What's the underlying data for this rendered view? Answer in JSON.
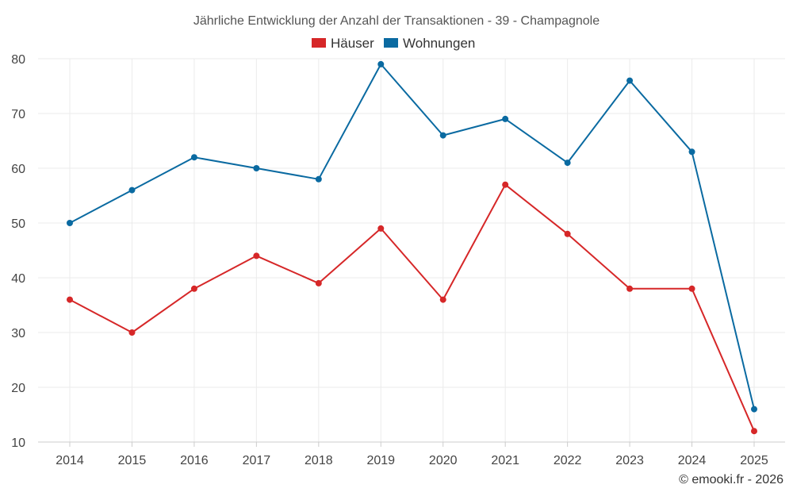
{
  "chart_data": {
    "type": "line",
    "title": "Jährliche Entwicklung der Anzahl der Transaktionen - 39 - Champagnole",
    "categories": [
      "2014",
      "2015",
      "2016",
      "2017",
      "2018",
      "2019",
      "2020",
      "2021",
      "2022",
      "2023",
      "2024",
      "2025"
    ],
    "series": [
      {
        "name": "Häuser",
        "color": "#d62728",
        "values": [
          36,
          30,
          38,
          44,
          39,
          49,
          36,
          57,
          48,
          38,
          38,
          12
        ]
      },
      {
        "name": "Wohnungen",
        "color": "#0a6aa1",
        "values": [
          50,
          56,
          62,
          60,
          58,
          79,
          66,
          69,
          61,
          76,
          63,
          16
        ]
      }
    ],
    "ylim": [
      10,
      80
    ],
    "yticks": [
      10,
      20,
      30,
      40,
      50,
      60,
      70,
      80
    ],
    "grid": true,
    "legend_position": "top-center",
    "xlabel": "",
    "ylabel": ""
  },
  "credit": "© emooki.fr - 2026"
}
